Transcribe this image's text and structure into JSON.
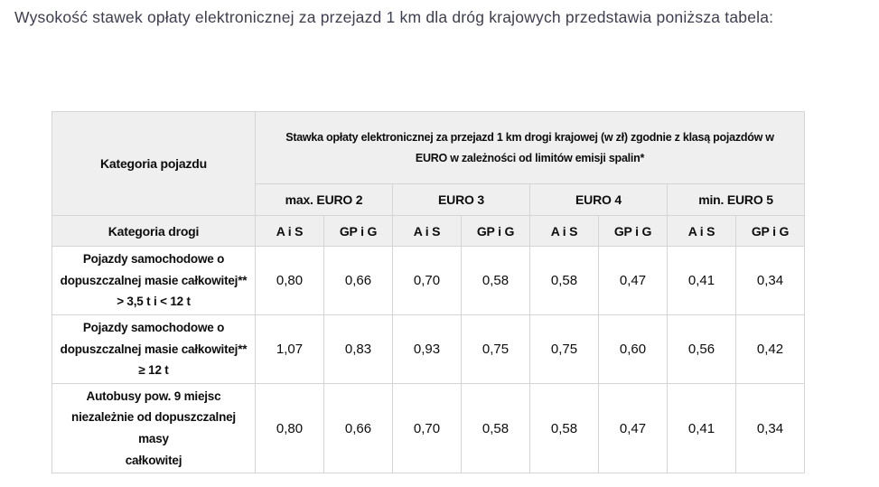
{
  "page": {
    "title": "Wysokość stawek opłaty elektronicznej za przejazd 1 km dla dróg krajowych przedstawia poniższa tabela:"
  },
  "table": {
    "vehicle_category_header": "Kategoria pojazdu",
    "rate_header": "Stawka opłaty elektronicznej za przejazd 1 km drogi krajowej (w zł) zgodnie z klasą pojazdów w\nEURO w zależności od limitów emisji spalin*",
    "euro_classes": [
      "max. EURO 2",
      "EURO 3",
      "EURO 4",
      "min. EURO 5"
    ],
    "road_category_header": "Kategoria drogi",
    "road_types": [
      "A i S",
      "GP i G",
      "A i S",
      "GP i G",
      "A i S",
      "GP i G",
      "A i S",
      "GP i G"
    ],
    "rows": [
      {
        "category": "Pojazdy samochodowe o\ndopuszczalnej masie całkowitej**\n> 3,5 t i < 12 t",
        "values": [
          "0,80",
          "0,66",
          "0,70",
          "0,58",
          "0,58",
          "0,47",
          "0,41",
          "0,34"
        ]
      },
      {
        "category": "Pojazdy samochodowe o\ndopuszczalnej masie całkowitej**\n≥ 12 t",
        "values": [
          "1,07",
          "0,83",
          "0,93",
          "0,75",
          "0,75",
          "0,60",
          "0,56",
          "0,42"
        ]
      },
      {
        "category": "Autobusy pow. 9 miejsc\nniezależnie od dopuszczalnej masy\ncałkowitej",
        "values": [
          "0,80",
          "0,66",
          "0,70",
          "0,58",
          "0,58",
          "0,47",
          "0,41",
          "0,34"
        ]
      }
    ],
    "colors": {
      "header_background": "#efefef",
      "border": "#d5d5d5",
      "cell_text": "#0d0d0d",
      "title_text": "#3e3e52"
    }
  }
}
